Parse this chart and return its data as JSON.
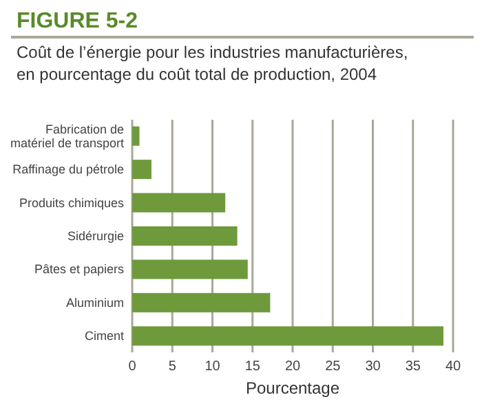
{
  "chart_data": {
    "type": "bar",
    "orientation": "horizontal",
    "title": "FIGURE 5-2",
    "subtitle": "Coût de l’énergie pour les industries manufacturières, en pourcentage du coût total de production, 2004",
    "xlabel": "Pourcentage",
    "categories": [
      "Fabrication de matériel de transport",
      "Raffinage du pétrole",
      "Produits chimiques",
      "Sidérurgie",
      "Pâtes et papiers",
      "Aluminium",
      "Ciment"
    ],
    "values": [
      0.9,
      2.4,
      11.6,
      13.1,
      14.4,
      17.2,
      38.8
    ],
    "color": "#6e9a3c",
    "xlim": [
      0,
      40
    ],
    "xticks": [
      0,
      5,
      10,
      15,
      20,
      25,
      30,
      35,
      40
    ],
    "grid": "x"
  }
}
